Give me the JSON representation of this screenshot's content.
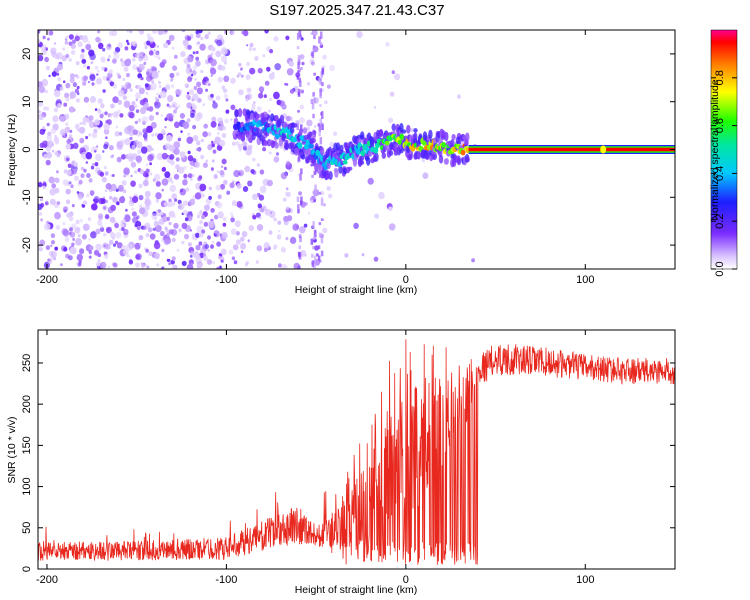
{
  "title": "S197.2025.347.21.43.C37",
  "chart_data": [
    {
      "type": "heatmap",
      "name": "spectrogram",
      "xlabel": "Height of straight line (km)",
      "ylabel": "Frequency (Hz)",
      "xlim": [
        -205,
        150
      ],
      "ylim": [
        -25,
        25
      ],
      "x_ticks": [
        -200,
        -100,
        0,
        100
      ],
      "x_tick_labels": [
        "-200",
        "-100",
        "0",
        "100"
      ],
      "y_ticks": [
        -20,
        -10,
        0,
        10,
        20
      ],
      "y_tick_labels": [
        "-20",
        "-10",
        "0",
        "10",
        "20"
      ],
      "colorbar": {
        "label": "Normalized spectral amplitude",
        "range": [
          0,
          1
        ],
        "ticks": [
          0.0,
          0.2,
          0.4,
          0.6,
          0.8
        ],
        "tick_labels": [
          "0.0",
          "0.2",
          "0.4",
          "0.6",
          "0.8"
        ]
      },
      "signal_trace": {
        "x": [
          -95,
          -85,
          -75,
          -65,
          -55,
          -45,
          -35,
          -25,
          -15,
          -5,
          5,
          15,
          25,
          35
        ],
        "freq": [
          5,
          5,
          4,
          3,
          1,
          -3,
          -2,
          0,
          1,
          2,
          1,
          1,
          0,
          0
        ],
        "amplitude": [
          0.3,
          0.4,
          0.45,
          0.5,
          0.4,
          0.45,
          0.5,
          0.5,
          0.55,
          0.75,
          0.8,
          0.85,
          0.8,
          0.9
        ]
      },
      "steady_line": {
        "x_start": 35,
        "x_end": 150,
        "freq": 0,
        "amplitude": 1.0
      }
    },
    {
      "type": "line",
      "name": "snr",
      "xlabel": "Height of straight line (km)",
      "ylabel": "SNR (10 * v/v)",
      "xlim": [
        -205,
        150
      ],
      "ylim": [
        0,
        290
      ],
      "x_ticks": [
        -200,
        -100,
        0,
        100
      ],
      "x_tick_labels": [
        "-200",
        "-100",
        "0",
        "100"
      ],
      "y_ticks": [
        0,
        50,
        100,
        150,
        200,
        250
      ],
      "y_tick_labels": [
        "0",
        "50",
        "100",
        "150",
        "200",
        "250"
      ],
      "color": "#e8281e",
      "envelope": {
        "x": [
          -205,
          -150,
          -100,
          -80,
          -60,
          -50,
          -35,
          -20,
          -10,
          0,
          10,
          20,
          30,
          40,
          50,
          75,
          100,
          125,
          150
        ],
        "base": [
          22,
          22,
          25,
          40,
          55,
          40,
          50,
          90,
          120,
          130,
          140,
          170,
          190,
          240,
          255,
          252,
          245,
          240,
          240
        ],
        "noise": [
          12,
          12,
          14,
          18,
          25,
          12,
          40,
          70,
          90,
          100,
          90,
          70,
          60,
          20,
          20,
          18,
          16,
          16,
          16
        ]
      }
    }
  ]
}
